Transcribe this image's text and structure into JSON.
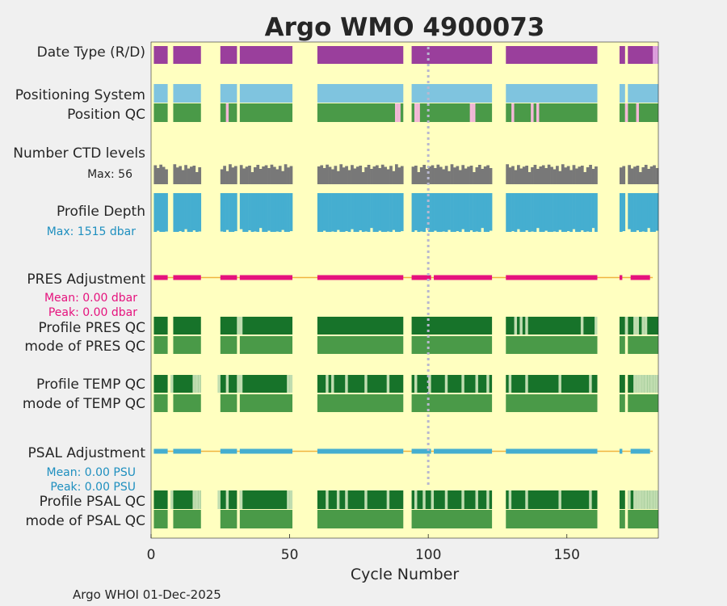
{
  "chart_data": {
    "type": "timeline",
    "title": "Argo WMO 4900073",
    "xlabel": "Cycle Number",
    "xlim": [
      0,
      183
    ],
    "xticks": [
      0,
      50,
      100,
      150
    ],
    "footer": "Argo WHOI 01-Dec-2025",
    "highlight_cycle": 100,
    "row_labels": {
      "date_type": "Date Type (R/D)",
      "positioning": "Positioning System",
      "position_qc": "Position QC",
      "ctd_levels": "Number CTD levels",
      "profile_depth": "Profile Depth",
      "pres_adj": "PRES Adjustment",
      "pres_qc": "Profile PRES QC",
      "pres_mode": "mode of PRES QC",
      "temp_qc": "Profile TEMP QC",
      "temp_mode": "mode of TEMP QC",
      "psal_adj": "PSAL Adjustment",
      "psal_qc": "Profile PSAL QC",
      "psal_mode": "mode of PSAL QC"
    },
    "sub_labels": {
      "ctd_max": "Max: 56",
      "depth_max": "Max: 1515 dbar",
      "pres_mean": "Mean: 0.00 dbar",
      "pres_peak": "Peak: 0.00 dbar",
      "psal_mean": "Mean: 0.00 PSU",
      "psal_peak": "Peak: 0.00 PSU"
    },
    "colors": {
      "plot_bg": "#ffffc0",
      "title": "#0a8bbf",
      "date_type": "#9a3f9c",
      "date_type_last": "#dda0dd",
      "positioning": "#7fc4df",
      "qc_good": "#4a9a48",
      "qc_pink": "#f4b8d8",
      "ctd": "#787878",
      "depth": "#45aed0",
      "pres_adj": "#e5127d",
      "psal_adj": "#45aed0",
      "adj_line": "#f0b440",
      "dark_green": "#17732a",
      "light_green": "#c0ddb0",
      "dotted": "#b8b8d0",
      "pres_sub": "#e5127d",
      "depth_sub": "#1e8fbf"
    },
    "segments": [
      [
        1,
        6
      ],
      [
        8,
        18
      ],
      [
        25,
        31
      ],
      [
        32,
        51
      ],
      [
        60,
        91
      ],
      [
        94,
        123
      ],
      [
        128,
        161
      ],
      [
        169,
        171
      ],
      [
        172,
        183
      ]
    ],
    "pres_adj_segments": [
      [
        1,
        6
      ],
      [
        8,
        18
      ],
      [
        25,
        31
      ],
      [
        32,
        51
      ],
      [
        60,
        91
      ],
      [
        94,
        101
      ],
      [
        102,
        123
      ],
      [
        128,
        161
      ],
      [
        169,
        170
      ],
      [
        173,
        180
      ]
    ],
    "date_type_last_cycles": [
      181,
      182
    ],
    "position_qc_pink": [
      27,
      88,
      89,
      95,
      96,
      115,
      116,
      130,
      137,
      139,
      171,
      175
    ],
    "ctd_levels": {
      "max": 56,
      "pattern": [
        0.88,
        0.94,
        0.8,
        0.97,
        0.86,
        0.74,
        0.91,
        0.65,
        0.99,
        0.83,
        0.9,
        0.7,
        0.95,
        0.78,
        0.87,
        0.92,
        0.6,
        0.84,
        0.96,
        0.76
      ]
    },
    "profile_depth": {
      "max": 1515,
      "pattern": [
        1.0,
        1.0,
        0.97,
        1.0,
        1.0,
        0.99,
        1.0,
        0.95,
        1.0,
        1.0,
        0.98,
        1.0,
        0.93,
        1.0,
        1.0,
        0.96,
        1.0,
        0.99,
        1.0,
        0.9
      ]
    },
    "pres_qc_light": [
      31,
      32,
      131,
      133,
      135,
      155,
      160,
      171,
      174,
      175,
      177,
      178
    ],
    "temp_qc_light": [
      7,
      15,
      16,
      17,
      24,
      27,
      31,
      32,
      49,
      50,
      63,
      65,
      70,
      77,
      85,
      95,
      100,
      106,
      112,
      117,
      121,
      129,
      135,
      147,
      158,
      174,
      175,
      176,
      177,
      178,
      179,
      180,
      181,
      182
    ],
    "psal_qc_light": [
      7,
      15,
      16,
      17,
      24,
      27,
      32,
      49,
      50,
      63,
      67,
      70,
      77,
      85,
      95,
      98,
      101,
      106,
      112,
      117,
      121,
      129,
      135,
      147,
      158,
      172,
      174,
      175,
      176,
      177,
      178,
      179,
      180,
      181,
      182
    ]
  }
}
